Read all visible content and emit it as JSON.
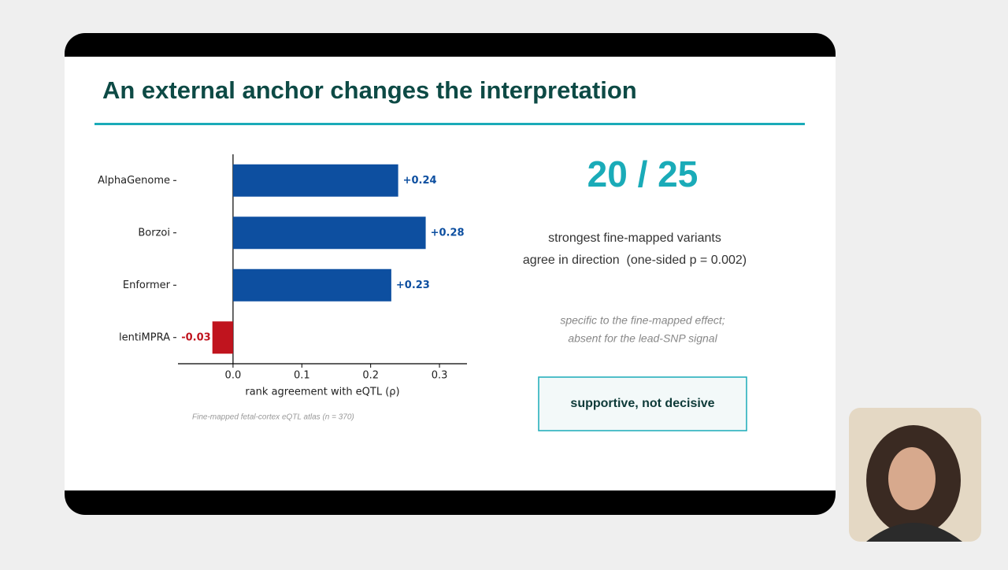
{
  "slide": {
    "title": "An external anchor changes the interpretation",
    "big_stat": "20 / 25",
    "stat_lines": [
      "strongest fine-mapped variants",
      "agree in direction  (one-sided p = 0.002)"
    ],
    "note_lines": [
      "specific to the fine-mapped effect;",
      "absent for the lead-SNP signal"
    ],
    "verdict": "supportive, not decisive",
    "footnote": "Fine-mapped fetal-cortex eQTL atlas (n = 370)"
  },
  "chart_data": {
    "type": "hbar",
    "categories": [
      "AlphaGenome",
      "Borzoi",
      "Enformer",
      "lentiMPRA"
    ],
    "values": [
      0.24,
      0.28,
      0.23,
      -0.03
    ],
    "value_labels": [
      "+0.24",
      "+0.28",
      "+0.23",
      "-0.03"
    ],
    "colors": [
      "#0d4fa0",
      "#0d4fa0",
      "#0d4fa0",
      "#c0141e"
    ],
    "xlim": [
      -0.08,
      0.34
    ],
    "xticks": [
      {
        "value": 0,
        "label": "0.0"
      },
      0.1,
      0.2,
      0.3
    ],
    "xlabel": "rank agreement with eQTL (ρ)"
  }
}
